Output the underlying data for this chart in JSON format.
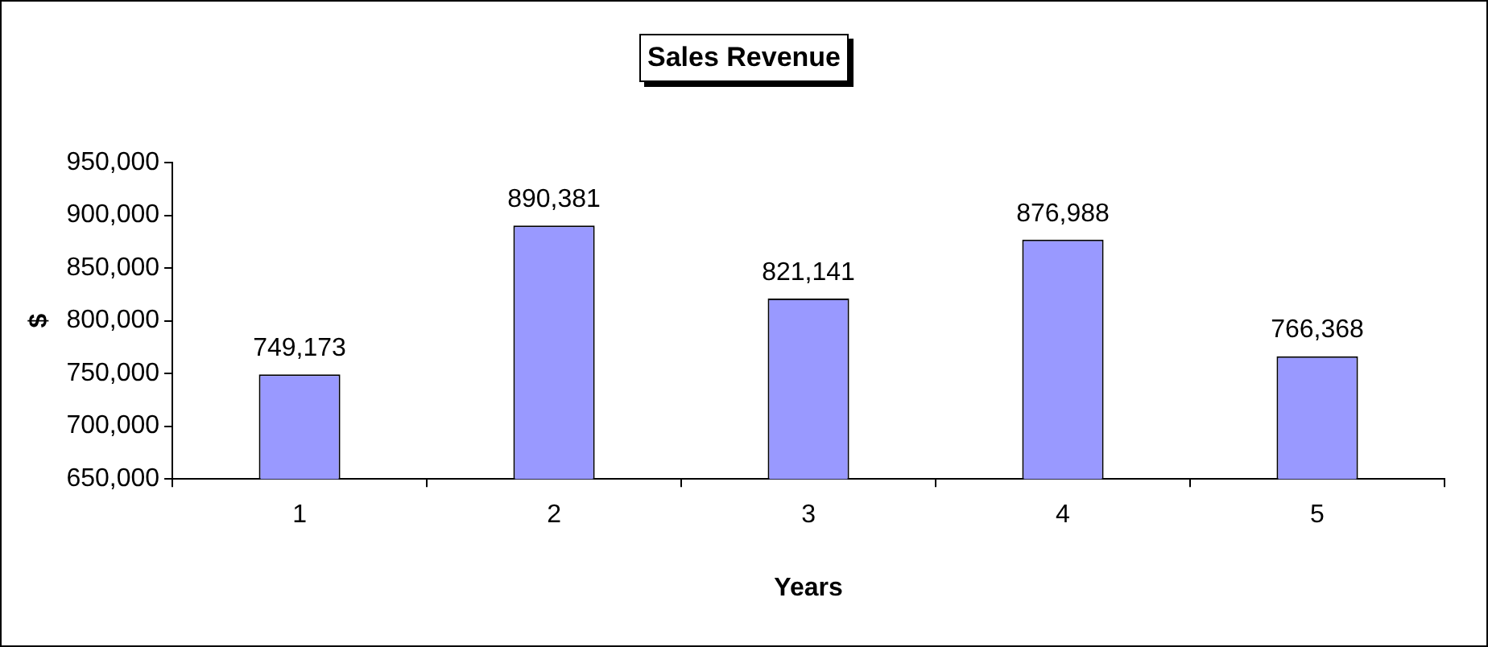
{
  "chart_data": {
    "type": "bar",
    "title": "Sales Revenue",
    "xlabel": "Years",
    "ylabel": "$",
    "categories": [
      "1",
      "2",
      "3",
      "4",
      "5"
    ],
    "values": [
      749173,
      890381,
      821141,
      876988,
      766368
    ],
    "value_labels": [
      "749,173",
      "890,381",
      "821,141",
      "876,988",
      "766,368"
    ],
    "color": "#9999ff",
    "ylim": [
      650000,
      950000
    ],
    "yticks": [
      {
        "value": 650000,
        "label": "650,000"
      },
      {
        "value": 700000,
        "label": "700,000"
      },
      {
        "value": 750000,
        "label": "750,000"
      },
      {
        "value": 800000,
        "label": "800,000"
      },
      {
        "value": 850000,
        "label": "850,000"
      },
      {
        "value": 900000,
        "label": "900,000"
      },
      {
        "value": 950000,
        "label": "950,000"
      }
    ],
    "grid": false,
    "legend": false
  }
}
